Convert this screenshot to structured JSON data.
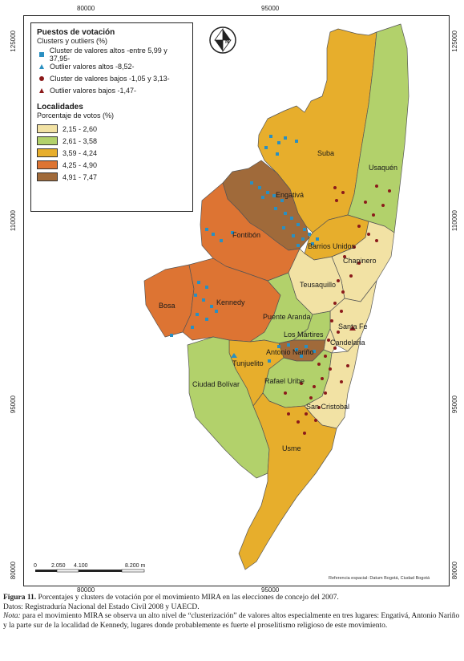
{
  "coords": {
    "top": [
      "80000",
      "95000"
    ],
    "bottom": [
      "80000",
      "95000"
    ],
    "left": [
      "125000",
      "110000",
      "95000",
      "80000"
    ],
    "right": [
      "125000",
      "110000",
      "95000",
      "80000"
    ]
  },
  "legend": {
    "title1": "Puestos de votación",
    "sub1": "Clusters y outliers (%)",
    "points": [
      {
        "symbol": "square",
        "color": "#2a8fc1",
        "label": "Cluster de valores altos -entre 5,99 y 37,95-"
      },
      {
        "symbol": "triangle",
        "color": "#2a8fc1",
        "label": "Outlier valores altos -8,52-"
      },
      {
        "symbol": "circle",
        "color": "#8b1a1a",
        "label": "Cluster de valores bajos -1,05 y 3,13-"
      },
      {
        "symbol": "triangle",
        "color": "#8b1a1a",
        "label": "Outlier valores bajos -1,47-"
      }
    ],
    "title2": "Localidades",
    "sub2": "Porcentaje de votos (%)",
    "classes": [
      {
        "label": "2,15 - 2,60",
        "color": "#f2e2a4"
      },
      {
        "label": "2,61 - 3,58",
        "color": "#b2d16b"
      },
      {
        "label": "3,59 - 4,24",
        "color": "#e7ae2c"
      },
      {
        "label": "4,25 - 4,90",
        "color": "#dd7433"
      },
      {
        "label": "4,91 - 7,47",
        "color": "#a06a3a"
      }
    ]
  },
  "north": "N",
  "localidades": [
    "Suba",
    "Usaquén",
    "Engativá",
    "Fontibón",
    "Barrios Unidos",
    "Chapinero",
    "Teusaquillo",
    "Bosa",
    "Kennedy",
    "Puente Aranda",
    "Santa Fe",
    "Los Mártires",
    "Candelaria",
    "Antonio Nariño",
    "Tunjuelito",
    "Rafael Uribe",
    "Ciudad Bolívar",
    "San Cristobal",
    "Usme"
  ],
  "scale": {
    "ticks": [
      "0",
      "2.050",
      "4.100",
      "8.200 m"
    ]
  },
  "reference": "Referencia espacial: Datum Bogotá, Ciudad Bogotá",
  "caption": {
    "figure_label": "Figura 11.",
    "figure_text": "Porcentajes y clusters de votación por el movimiento MIRA en las elecciones de concejo del 2007.",
    "source": "Datos: Registraduría Nacional del Estado Civil 2008 y UAECD.",
    "note_label": "Nota:",
    "note_text": "para el movimiento MIRA se observa un alto nivel de “clusterización” de valores altos especialmente en tres lugares: Engativá, Antonio Nariño y la parte sur de la localidad de Kennedy, lugares donde probablemente es fuerte el proselitismo religioso de este movimiento."
  }
}
